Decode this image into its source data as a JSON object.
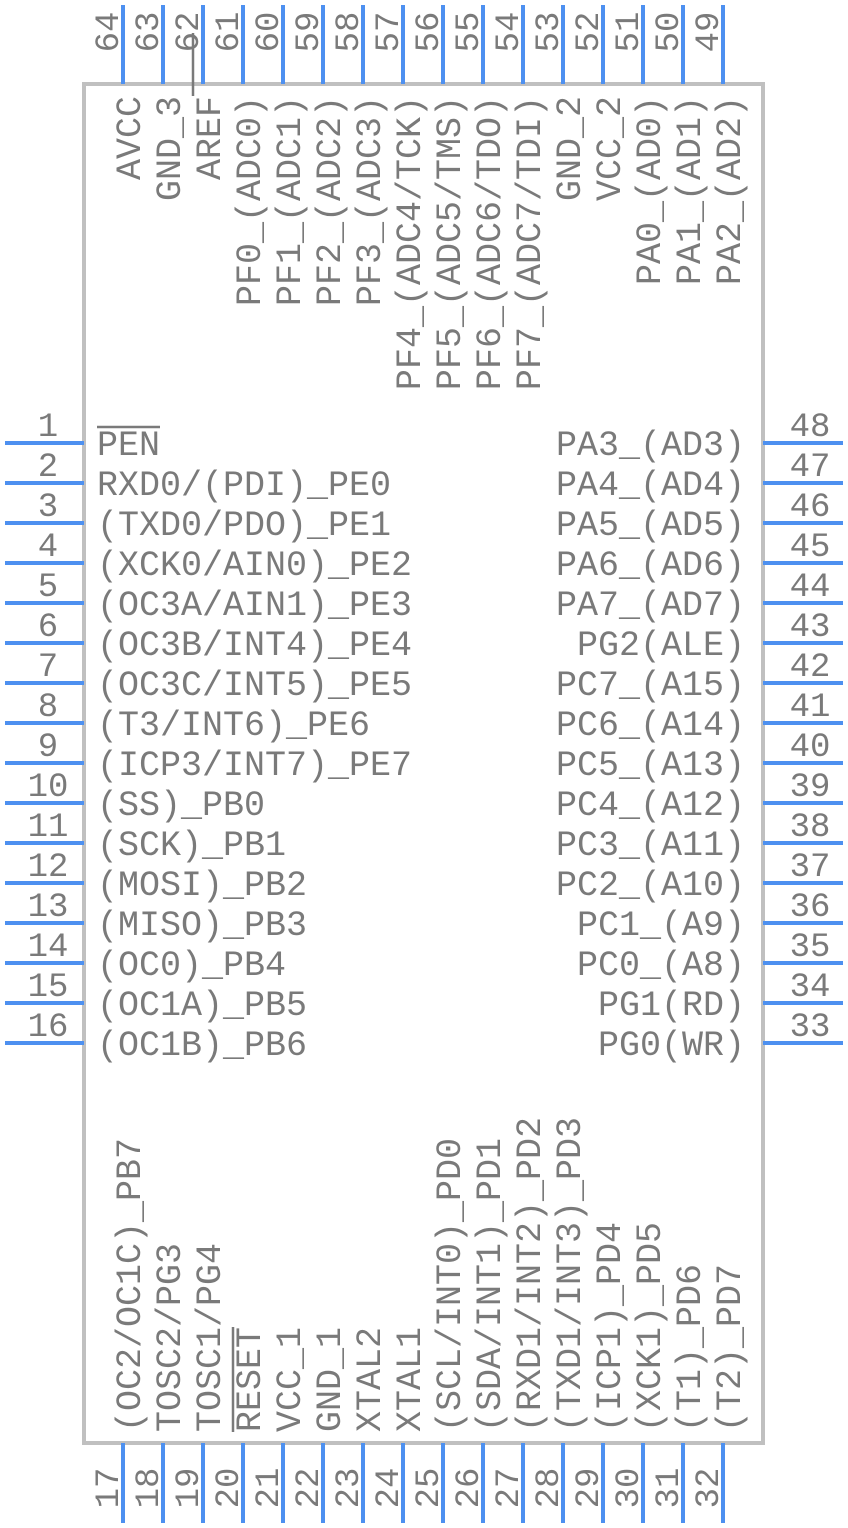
{
  "colors": {
    "pin": "#4d90f0",
    "text": "#7a7a7a",
    "body_outline": "#c0c0c0",
    "background": "#ffffff"
  },
  "left_pins": [
    {
      "number": "1",
      "label": "PEN",
      "overline": true
    },
    {
      "number": "2",
      "label": "RXD0/(PDI)_PE0"
    },
    {
      "number": "3",
      "label": "(TXD0/PDO)_PE1"
    },
    {
      "number": "4",
      "label": "(XCK0/AIN0)_PE2"
    },
    {
      "number": "5",
      "label": "(OC3A/AIN1)_PE3"
    },
    {
      "number": "6",
      "label": "(OC3B/INT4)_PE4"
    },
    {
      "number": "7",
      "label": "(OC3C/INT5)_PE5"
    },
    {
      "number": "8",
      "label": "(T3/INT6)_PE6"
    },
    {
      "number": "9",
      "label": "(ICP3/INT7)_PE7"
    },
    {
      "number": "10",
      "label": "(SS)_PB0"
    },
    {
      "number": "11",
      "label": "(SCK)_PB1"
    },
    {
      "number": "12",
      "label": "(MOSI)_PB2"
    },
    {
      "number": "13",
      "label": "(MISO)_PB3"
    },
    {
      "number": "14",
      "label": "(OC0)_PB4"
    },
    {
      "number": "15",
      "label": "(OC1A)_PB5"
    },
    {
      "number": "16",
      "label": "(OC1B)_PB6"
    }
  ],
  "bottom_pins": [
    {
      "number": "17",
      "label": "(OC2/OC1C)_PB7"
    },
    {
      "number": "18",
      "label": "TOSC2/PG3"
    },
    {
      "number": "19",
      "label": "TOSC1/PG4"
    },
    {
      "number": "20",
      "label": "RESET",
      "overline": true
    },
    {
      "number": "21",
      "label": "VCC_1"
    },
    {
      "number": "22",
      "label": "GND_1"
    },
    {
      "number": "23",
      "label": "XTAL2"
    },
    {
      "number": "24",
      "label": "XTAL1"
    },
    {
      "number": "25",
      "label": "(SCL/INT0)_PD0"
    },
    {
      "number": "26",
      "label": "(SDA/INT1)_PD1"
    },
    {
      "number": "27",
      "label": "(RXD1/INT2)_PD2"
    },
    {
      "number": "28",
      "label": "(TXD1/INT3)_PD3"
    },
    {
      "number": "29",
      "label": "(ICP1)_PD4"
    },
    {
      "number": "30",
      "label": "(XCK1)_PD5"
    },
    {
      "number": "31",
      "label": "(T1)_PD6"
    },
    {
      "number": "32",
      "label": "(T2)_PD7"
    }
  ],
  "right_pins": [
    {
      "number": "48",
      "label": "PA3_(AD3)"
    },
    {
      "number": "47",
      "label": "PA4_(AD4)"
    },
    {
      "number": "46",
      "label": "PA5_(AD5)"
    },
    {
      "number": "45",
      "label": "PA6_(AD6)"
    },
    {
      "number": "44",
      "label": "PA7_(AD7)"
    },
    {
      "number": "43",
      "label": "PG2(ALE)"
    },
    {
      "number": "42",
      "label": "PC7_(A15)"
    },
    {
      "number": "41",
      "label": "PC6_(A14)"
    },
    {
      "number": "40",
      "label": "PC5_(A13)"
    },
    {
      "number": "39",
      "label": "PC4_(A12)"
    },
    {
      "number": "38",
      "label": "PC3_(A11)"
    },
    {
      "number": "37",
      "label": "PC2_(A10)"
    },
    {
      "number": "36",
      "label": "PC1_(A9)"
    },
    {
      "number": "35",
      "label": "PC0_(A8)"
    },
    {
      "number": "34",
      "label": "PG1(RD)"
    },
    {
      "number": "33",
      "label": "PG0(WR)"
    }
  ],
  "top_pins": [
    {
      "number": "64",
      "label": "AVCC"
    },
    {
      "number": "63",
      "label": "GND_3"
    },
    {
      "number": "62",
      "label": "AREF",
      "overline": true
    },
    {
      "number": "61",
      "label": "PF0_(ADC0)"
    },
    {
      "number": "60",
      "label": "PF1_(ADC1)"
    },
    {
      "number": "59",
      "label": "PF2_(ADC2)"
    },
    {
      "number": "58",
      "label": "PF3_(ADC3)"
    },
    {
      "number": "57",
      "label": "PF4_(ADC4/TCK)"
    },
    {
      "number": "56",
      "label": "PF5_(ADC5/TMS)"
    },
    {
      "number": "55",
      "label": "PF6_(ADC6/TDO)"
    },
    {
      "number": "54",
      "label": "PF7_(ADC7/TDI)"
    },
    {
      "number": "53",
      "label": "GND_2"
    },
    {
      "number": "52",
      "label": "VCC_2"
    },
    {
      "number": "51",
      "label": "PA0_(AD0)"
    },
    {
      "number": "50",
      "label": "PA1_(AD1)"
    },
    {
      "number": "49",
      "label": "PA2_(AD2)"
    }
  ]
}
